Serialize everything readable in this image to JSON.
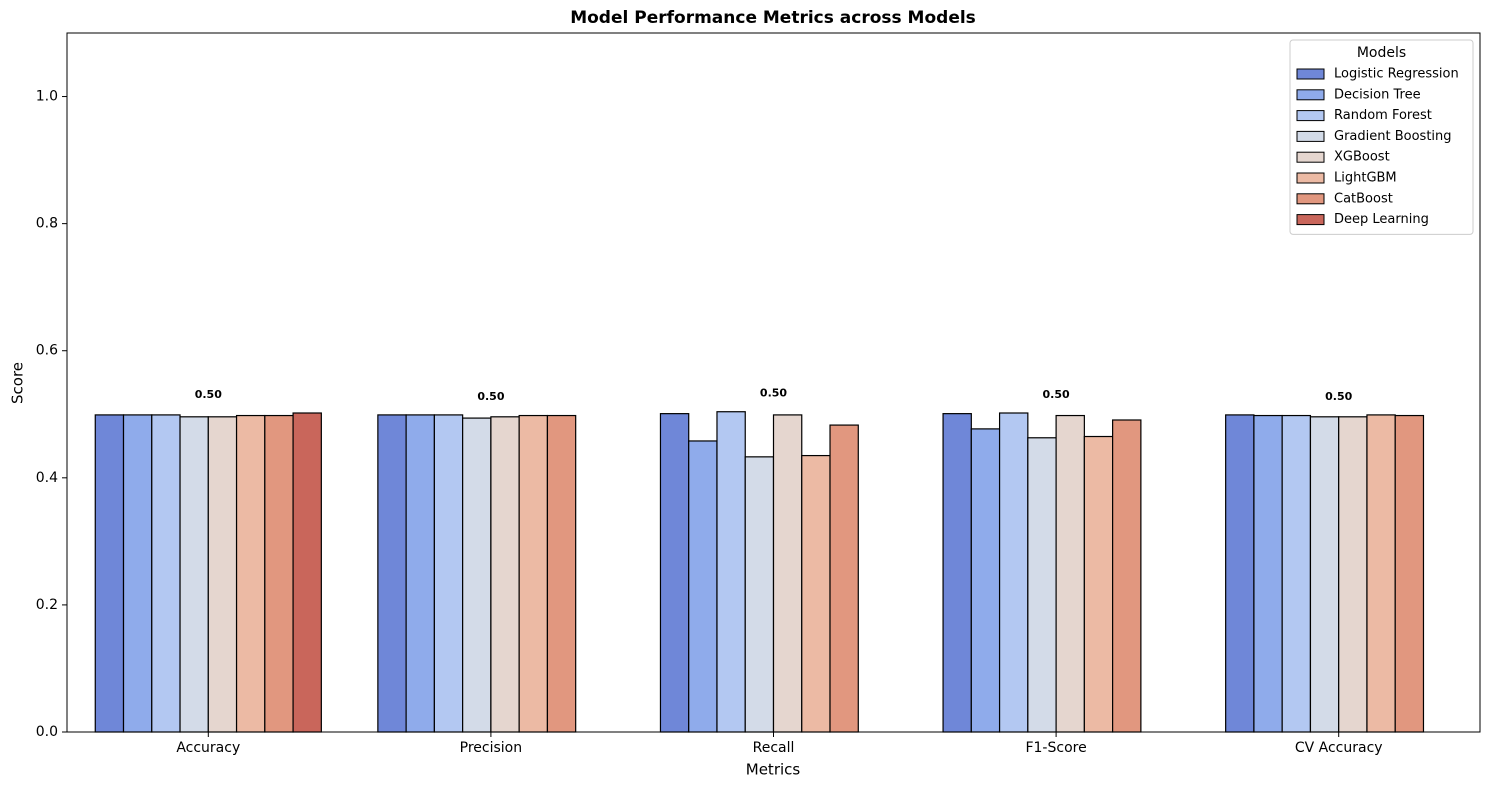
{
  "chart_data": {
    "type": "bar",
    "title": "Model Performance Metrics across Models",
    "x_label": "Metrics",
    "y_label": "Score",
    "categories": [
      "Accuracy",
      "Precision",
      "Recall",
      "F1-Score",
      "CV Accuracy"
    ],
    "series": [
      {
        "name": "Logistic Regression",
        "color": "#6f87d8",
        "values": [
          0.499,
          0.499,
          0.501,
          0.501,
          0.499
        ]
      },
      {
        "name": "Decision Tree",
        "color": "#8fabeb",
        "values": [
          0.499,
          0.499,
          0.458,
          0.477,
          0.498
        ]
      },
      {
        "name": "Random Forest",
        "color": "#b3c8f2",
        "values": [
          0.499,
          0.499,
          0.504,
          0.502,
          0.498
        ]
      },
      {
        "name": "Gradient Boosting",
        "color": "#d3dbe8",
        "values": [
          0.496,
          0.494,
          0.433,
          0.463,
          0.496
        ]
      },
      {
        "name": "XGBoost",
        "color": "#e5d6cf",
        "values": [
          0.496,
          0.496,
          0.499,
          0.498,
          0.496
        ]
      },
      {
        "name": "LightGBM",
        "color": "#ecbaa4",
        "values": [
          0.498,
          0.498,
          0.435,
          0.465,
          0.499
        ]
      },
      {
        "name": "CatBoost",
        "color": "#e1977f",
        "values": [
          0.498,
          0.498,
          0.483,
          0.491,
          0.498
        ]
      },
      {
        "name": "Deep Learning",
        "color": "#c9665b",
        "values": [
          0.502,
          null,
          null,
          null,
          null
        ]
      }
    ],
    "group_labels": [
      "0.50",
      "0.50",
      "0.50",
      "0.50",
      "0.50"
    ],
    "ylim": [
      0,
      1.1
    ],
    "yticks": [
      {
        "value": 0,
        "label": "0.0"
      },
      0.2,
      0.4,
      0.6,
      0.8,
      {
        "value": 1,
        "label": "1.0"
      }
    ],
    "legend_title": "Models",
    "legend": "upper right"
  }
}
